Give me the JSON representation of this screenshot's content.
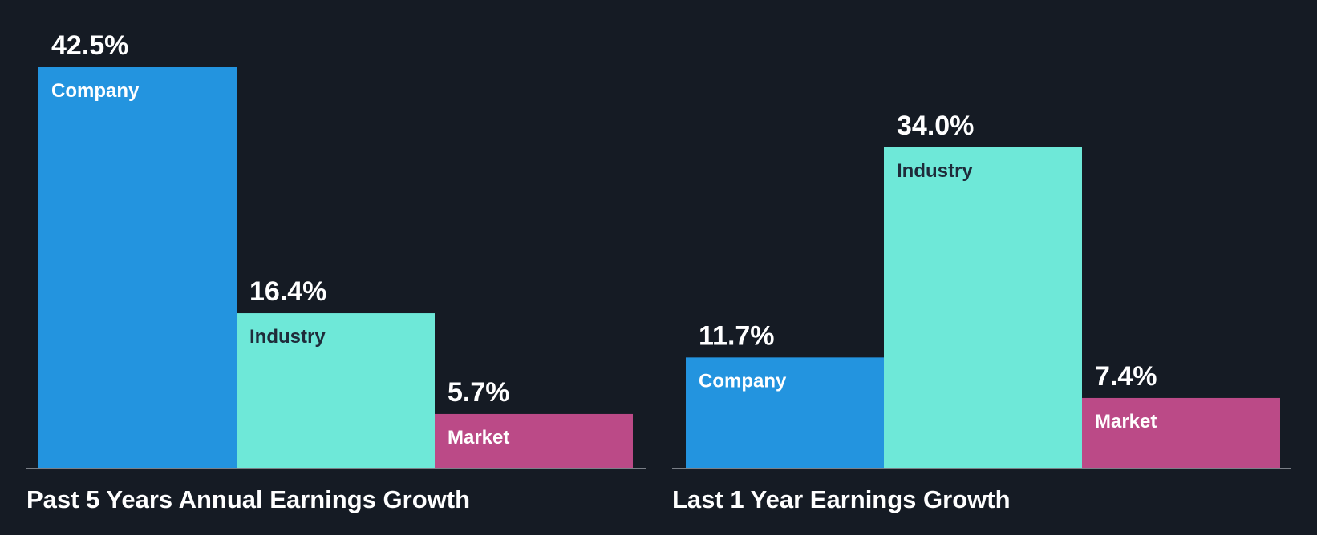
{
  "colors": {
    "background": "#151b24",
    "company": "#2394df",
    "industry": "#6ee8d8",
    "market": "#bb4a87",
    "baseline": "#7a7f87",
    "label_light": "#ffffff",
    "label_dark": "#1f2b3a"
  },
  "chart_data": [
    {
      "type": "bar",
      "title": "Past 5 Years Annual Earnings Growth",
      "categories": [
        "Company",
        "Industry",
        "Market"
      ],
      "values": [
        42.5,
        16.4,
        5.7
      ],
      "value_labels": [
        "42.5%",
        "16.4%",
        "5.7%"
      ],
      "unit": "%",
      "ylim": [
        0,
        42.5
      ],
      "grid": false,
      "legend": "none"
    },
    {
      "type": "bar",
      "title": "Last 1 Year Earnings Growth",
      "categories": [
        "Company",
        "Industry",
        "Market"
      ],
      "values": [
        11.7,
        34.0,
        7.4
      ],
      "value_labels": [
        "11.7%",
        "34.0%",
        "7.4%"
      ],
      "unit": "%",
      "ylim": [
        0,
        42.5
      ],
      "grid": false,
      "legend": "none"
    }
  ]
}
